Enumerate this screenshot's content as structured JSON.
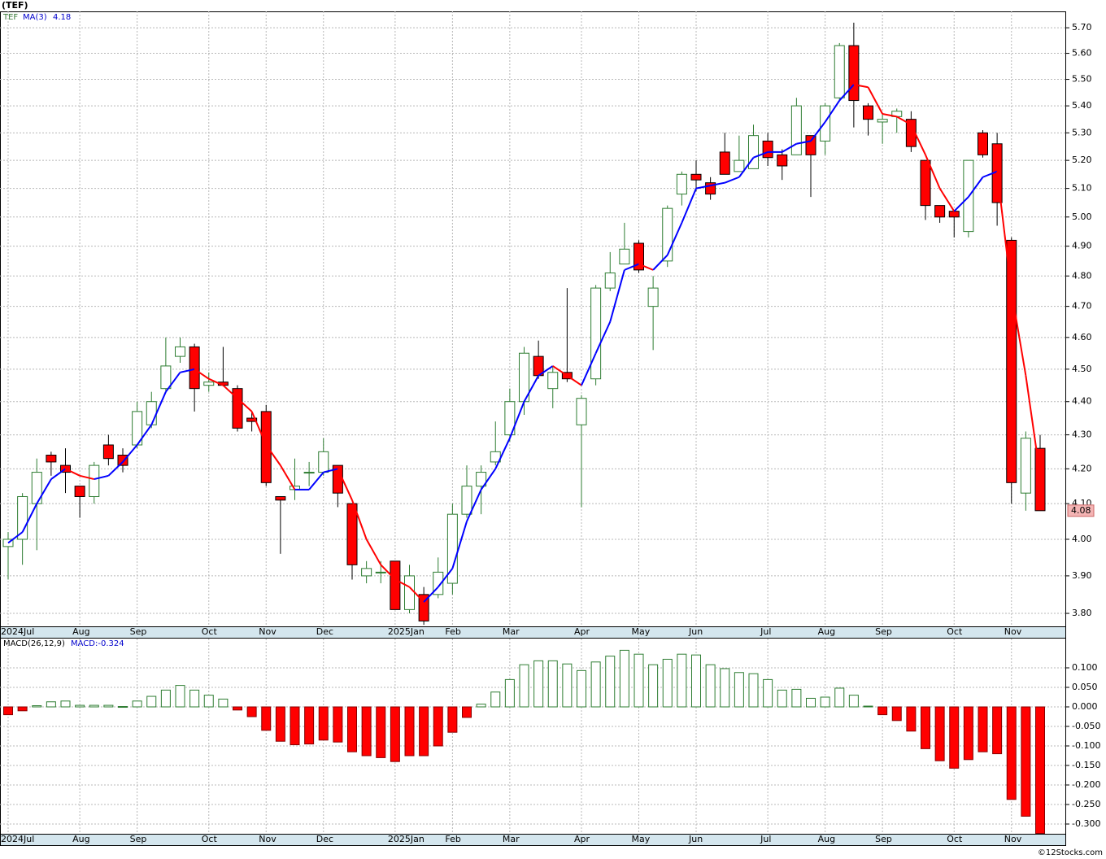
{
  "header": {
    "title": "(TEF)",
    "credit": "©12Stocks.com"
  },
  "chart_data": [
    {
      "type": "candlestick",
      "symbol": "TEF",
      "log": true,
      "grid": true,
      "up_color": "#2e7d32",
      "down_color": "#ff0000",
      "categories": [
        "2024Jul",
        null,
        null,
        null,
        null,
        "Aug",
        null,
        null,
        null,
        "Sep",
        null,
        null,
        null,
        null,
        "Oct",
        null,
        null,
        null,
        "Nov",
        null,
        null,
        null,
        "Dec",
        null,
        null,
        null,
        null,
        "2025Jan",
        null,
        null,
        null,
        "Feb",
        null,
        null,
        null,
        "Mar",
        null,
        null,
        null,
        null,
        "Apr",
        null,
        null,
        null,
        "May",
        null,
        null,
        null,
        "Jun",
        null,
        null,
        null,
        null,
        "Jul",
        null,
        null,
        null,
        "Aug",
        null,
        null,
        null,
        "Sep",
        null,
        null,
        null,
        null,
        "Oct",
        null,
        null,
        null,
        "Nov",
        null,
        null
      ],
      "open": [
        3.98,
        4.0,
        4.1,
        4.24,
        4.21,
        4.15,
        4.12,
        4.27,
        4.24,
        4.27,
        4.33,
        4.44,
        4.54,
        4.57,
        4.45,
        4.46,
        4.44,
        4.35,
        4.37,
        4.12,
        4.14,
        4.19,
        4.19,
        4.21,
        4.1,
        3.9,
        3.91,
        3.94,
        3.81,
        3.85,
        3.85,
        3.88,
        4.07,
        4.15,
        4.22,
        4.3,
        4.4,
        4.54,
        4.44,
        4.49,
        4.33,
        4.47,
        4.76,
        4.84,
        4.91,
        4.7,
        4.85,
        5.08,
        5.15,
        5.12,
        5.23,
        5.16,
        5.17,
        5.27,
        5.22,
        5.22,
        5.29,
        5.27,
        5.43,
        5.63,
        5.4,
        5.34,
        5.36,
        5.35,
        5.2,
        5.04,
        5.02,
        4.95,
        5.3,
        5.26,
        4.92,
        4.13,
        4.26
      ],
      "high": [
        4.02,
        4.13,
        4.23,
        4.25,
        4.26,
        4.15,
        4.22,
        4.3,
        4.26,
        4.4,
        4.43,
        4.6,
        4.6,
        4.58,
        4.49,
        4.57,
        4.45,
        4.37,
        4.39,
        4.12,
        4.23,
        4.22,
        4.29,
        4.21,
        4.1,
        3.94,
        3.94,
        3.94,
        3.93,
        3.87,
        3.95,
        4.1,
        4.21,
        4.21,
        4.34,
        4.44,
        4.57,
        4.59,
        4.51,
        4.76,
        4.42,
        4.77,
        4.88,
        4.98,
        4.92,
        4.8,
        5.04,
        5.16,
        5.2,
        5.14,
        5.3,
        5.29,
        5.33,
        5.3,
        5.24,
        5.43,
        5.29,
        5.41,
        5.64,
        5.72,
        5.41,
        5.37,
        5.39,
        5.38,
        5.2,
        5.04,
        5.02,
        5.2,
        5.31,
        5.3,
        4.93,
        4.31,
        4.3
      ],
      "low": [
        3.89,
        3.93,
        3.97,
        4.18,
        4.13,
        4.06,
        4.1,
        4.21,
        4.19,
        4.26,
        4.32,
        4.43,
        4.52,
        4.37,
        4.43,
        4.45,
        4.31,
        4.31,
        4.15,
        3.96,
        4.11,
        4.15,
        4.18,
        4.09,
        3.89,
        3.88,
        3.88,
        3.81,
        3.8,
        3.77,
        3.84,
        3.85,
        4.06,
        4.07,
        4.21,
        4.28,
        4.36,
        4.47,
        4.38,
        4.46,
        4.09,
        4.45,
        4.75,
        4.84,
        4.81,
        4.56,
        4.83,
        5.04,
        5.09,
        5.06,
        5.15,
        5.16,
        5.17,
        5.18,
        5.13,
        5.22,
        5.07,
        5.22,
        5.42,
        5.32,
        5.29,
        5.26,
        5.3,
        5.23,
        4.99,
        4.98,
        4.93,
        4.93,
        5.21,
        4.97,
        4.1,
        4.08,
        4.08
      ],
      "close": [
        4.0,
        4.12,
        4.19,
        4.22,
        4.19,
        4.12,
        4.21,
        4.23,
        4.21,
        4.37,
        4.4,
        4.51,
        4.57,
        4.44,
        4.46,
        4.45,
        4.32,
        4.34,
        4.16,
        4.11,
        4.15,
        4.19,
        4.25,
        4.13,
        3.93,
        3.92,
        3.91,
        3.81,
        3.9,
        3.78,
        3.91,
        4.07,
        4.15,
        4.19,
        4.25,
        4.4,
        4.55,
        4.48,
        4.49,
        4.47,
        4.41,
        4.76,
        4.81,
        4.89,
        4.82,
        4.76,
        5.03,
        5.15,
        5.13,
        5.08,
        5.15,
        5.2,
        5.29,
        5.21,
        5.18,
        5.4,
        5.22,
        5.4,
        5.63,
        5.42,
        5.35,
        5.35,
        5.38,
        5.25,
        5.04,
        5.0,
        5.0,
        5.2,
        5.22,
        5.05,
        4.16,
        4.29,
        4.08
      ],
      "ma": {
        "name": "MA(3)",
        "up_color": "#0000ff",
        "down_color": "#ff0000",
        "values": [
          3.99,
          4.02,
          4.1,
          4.17,
          4.2,
          4.18,
          4.17,
          4.18,
          4.22,
          4.27,
          4.33,
          4.43,
          4.49,
          4.5,
          4.47,
          4.45,
          4.41,
          4.37,
          4.27,
          4.21,
          4.14,
          4.14,
          4.19,
          4.2,
          4.11,
          4.0,
          3.93,
          3.89,
          3.87,
          3.83,
          3.87,
          3.92,
          4.05,
          4.14,
          4.2,
          4.29,
          4.4,
          4.48,
          4.51,
          4.48,
          4.45,
          4.55,
          4.65,
          4.82,
          4.84,
          4.82,
          4.87,
          4.98,
          5.1,
          5.11,
          5.12,
          5.14,
          5.21,
          5.23,
          5.23,
          5.26,
          5.27,
          5.34,
          5.42,
          5.48,
          5.47,
          5.37,
          5.36,
          5.33,
          5.22,
          5.1,
          5.02,
          5.07,
          5.14,
          5.16,
          4.75,
          4.48,
          4.18
        ]
      },
      "ylim": [
        3.766,
        5.765
      ],
      "yticks": [
        {
          "value": 3.8,
          "label": "3.80"
        },
        {
          "value": 3.9,
          "label": "3.90"
        },
        {
          "value": 4.0,
          "label": "4.00"
        },
        {
          "value": 4.1,
          "label": "4.10"
        },
        {
          "value": 4.2,
          "label": "4.20"
        },
        {
          "value": 4.3,
          "label": "4.30"
        },
        {
          "value": 4.4,
          "label": "4.40"
        },
        {
          "value": 4.5,
          "label": "4.50"
        },
        {
          "value": 4.6,
          "label": "4.60"
        },
        {
          "value": 4.7,
          "label": "4.70"
        },
        {
          "value": 4.8,
          "label": "4.80"
        },
        {
          "value": 4.9,
          "label": "4.90"
        },
        {
          "value": 5.0,
          "label": "5.00"
        },
        {
          "value": 5.1,
          "label": "5.10"
        },
        {
          "value": 5.2,
          "label": "5.20"
        },
        {
          "value": 5.3,
          "label": "5.30"
        },
        {
          "value": 5.4,
          "label": "5.40"
        },
        {
          "value": 5.5,
          "label": "5.50"
        },
        {
          "value": 5.6,
          "label": "5.60"
        },
        {
          "value": 5.7,
          "label": "5.70"
        }
      ]
    },
    {
      "type": "bar",
      "name": "MACD(26,12,9)",
      "value_label": "MACD:-0.324",
      "grid": true,
      "pos_color": "#2e7d32",
      "neg_color": "#ff0000",
      "values": [
        -0.02,
        -0.01,
        0.003,
        0.013,
        0.015,
        0.004,
        0.004,
        0.004,
        0.001,
        0.015,
        0.027,
        0.043,
        0.055,
        0.043,
        0.03,
        0.02,
        -0.008,
        -0.025,
        -0.06,
        -0.088,
        -0.097,
        -0.095,
        -0.085,
        -0.09,
        -0.115,
        -0.125,
        -0.13,
        -0.14,
        -0.125,
        -0.125,
        -0.1,
        -0.065,
        -0.027,
        0.007,
        0.038,
        0.07,
        0.108,
        0.118,
        0.118,
        0.11,
        0.093,
        0.115,
        0.13,
        0.145,
        0.135,
        0.108,
        0.122,
        0.135,
        0.133,
        0.108,
        0.098,
        0.088,
        0.085,
        0.07,
        0.043,
        0.045,
        0.022,
        0.025,
        0.048,
        0.03,
        0.002,
        -0.02,
        -0.035,
        -0.062,
        -0.107,
        -0.138,
        -0.157,
        -0.135,
        -0.115,
        -0.12,
        -0.237,
        -0.28,
        -0.324
      ],
      "ylim": [
        -0.325,
        0.175
      ],
      "yticks": [
        {
          "value": 0.1,
          "label": "0.100"
        },
        {
          "value": 0.05,
          "label": "0.050"
        },
        {
          "value": 0,
          "label": "0.000"
        },
        {
          "value": -0.05,
          "label": "-0.050"
        },
        {
          "value": -0.1,
          "label": "-0.100"
        },
        {
          "value": -0.15,
          "label": "-0.150"
        },
        {
          "value": -0.2,
          "label": "-0.200"
        },
        {
          "value": -0.25,
          "label": "-0.250"
        },
        {
          "value": -0.3,
          "label": "-0.300"
        }
      ]
    }
  ]
}
